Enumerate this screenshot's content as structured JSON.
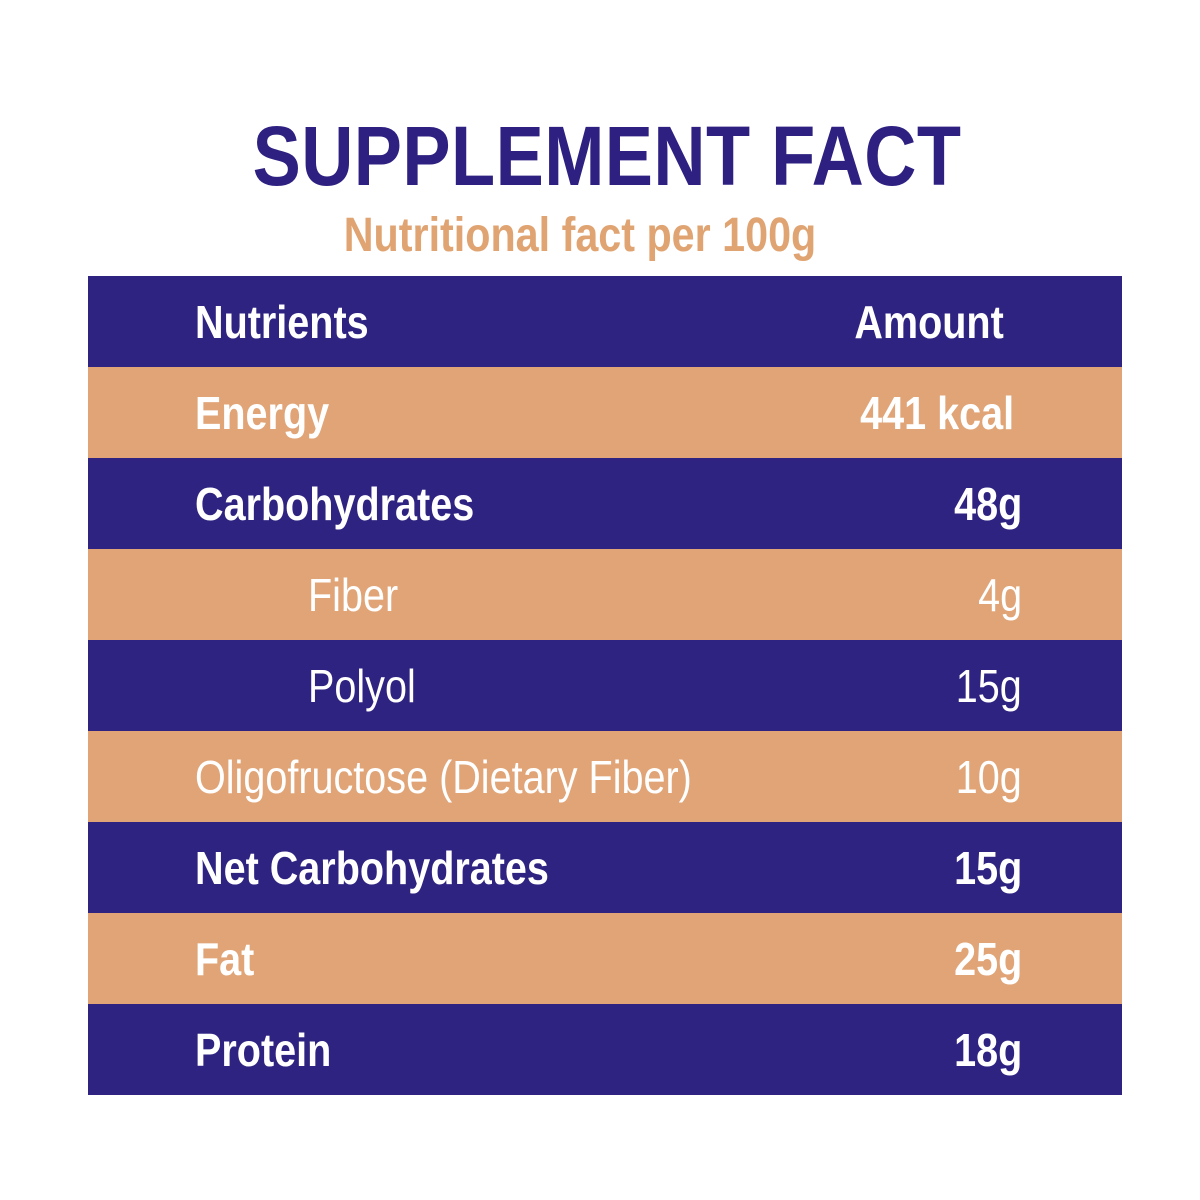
{
  "title": "SUPPLEMENT FACT",
  "subtitle": "Nutritional fact per 100g",
  "colors": {
    "navy": "#2e2380",
    "peach": "#e0a477",
    "title_color": "#2d2080",
    "subtitle_color": "#e0a472",
    "text": "#ffffff"
  },
  "table": {
    "header": {
      "nutrients": "Nutrients",
      "amount": "Amount"
    },
    "rows": [
      {
        "name": "Energy",
        "amount": "441 kcal",
        "style": "bold",
        "indent": false
      },
      {
        "name": "Carbohydrates",
        "amount": "48g",
        "style": "bold",
        "indent": false
      },
      {
        "name": "Fiber",
        "amount": "4g",
        "style": "regular",
        "indent": true
      },
      {
        "name": "Polyol",
        "amount": "15g",
        "style": "regular",
        "indent": true
      },
      {
        "name": "Oligofructose (Dietary Fiber)",
        "amount": "10g",
        "style": "regular",
        "indent": false
      },
      {
        "name": "Net Carbohydrates",
        "amount": "15g",
        "style": "bold",
        "indent": false
      },
      {
        "name": "Fat",
        "amount": "25g",
        "style": "bold",
        "indent": false
      },
      {
        "name": "Protein",
        "amount": "18g",
        "style": "bold",
        "indent": false
      }
    ]
  }
}
